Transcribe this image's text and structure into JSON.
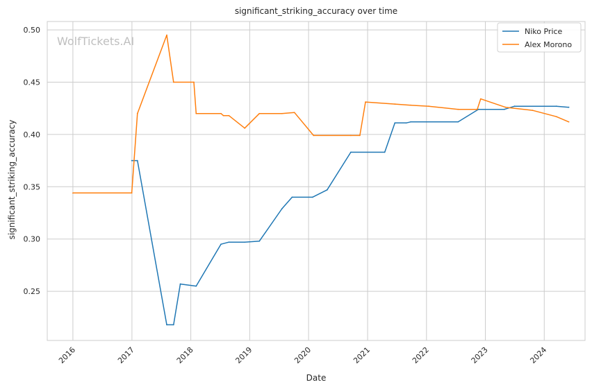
{
  "watermark": "WolfTickets.AI",
  "chart_data": {
    "type": "line",
    "title": "significant_striking_accuracy over time",
    "xlabel": "Date",
    "ylabel": "significant_striking_accuracy",
    "x_ticks": [
      "2016",
      "2017",
      "2018",
      "2019",
      "2020",
      "2021",
      "2022",
      "2023",
      "2024"
    ],
    "y_ticks": [
      "0.25",
      "0.30",
      "0.35",
      "0.40",
      "0.45",
      "0.50"
    ],
    "xlim": [
      "2015-07-26",
      "2024-09-10"
    ],
    "ylim": [
      0.203,
      0.508
    ],
    "grid": true,
    "legend_position": "top-right",
    "series": [
      {
        "name": "Niko Price",
        "color": "#1f77b4",
        "points": [
          [
            "2016-12-31",
            0.375
          ],
          [
            "2017-02-04",
            0.375
          ],
          [
            "2017-08-05",
            0.218
          ],
          [
            "2017-09-16",
            0.218
          ],
          [
            "2017-10-28",
            0.257
          ],
          [
            "2018-02-03",
            0.255
          ],
          [
            "2018-07-07",
            0.295
          ],
          [
            "2018-08-25",
            0.297
          ],
          [
            "2018-12-01",
            0.297
          ],
          [
            "2019-03-02",
            0.298
          ],
          [
            "2019-07-20",
            0.329
          ],
          [
            "2019-09-21",
            0.34
          ],
          [
            "2020-01-25",
            0.34
          ],
          [
            "2020-04-25",
            0.347
          ],
          [
            "2020-09-19",
            0.383
          ],
          [
            "2021-04-17",
            0.383
          ],
          [
            "2021-06-19",
            0.411
          ],
          [
            "2021-08-28",
            0.411
          ],
          [
            "2021-09-25",
            0.412
          ],
          [
            "2022-07-16",
            0.412
          ],
          [
            "2022-11-19",
            0.424
          ],
          [
            "2023-04-29",
            0.424
          ],
          [
            "2023-07-01",
            0.427
          ],
          [
            "2024-03-16",
            0.427
          ],
          [
            "2024-06-01",
            0.426
          ]
        ]
      },
      {
        "name": "Alex Morono",
        "color": "#ff7f0e",
        "points": [
          [
            "2016-01-01",
            0.344
          ],
          [
            "2016-12-31",
            0.344
          ],
          [
            "2017-02-04",
            0.42
          ],
          [
            "2017-08-05",
            0.495
          ],
          [
            "2017-09-16",
            0.45
          ],
          [
            "2018-01-20",
            0.45
          ],
          [
            "2018-02-03",
            0.42
          ],
          [
            "2018-07-07",
            0.42
          ],
          [
            "2018-07-22",
            0.418
          ],
          [
            "2018-08-25",
            0.418
          ],
          [
            "2018-12-01",
            0.406
          ],
          [
            "2019-03-02",
            0.42
          ],
          [
            "2019-07-20",
            0.42
          ],
          [
            "2019-10-05",
            0.421
          ],
          [
            "2020-02-01",
            0.399
          ],
          [
            "2020-09-19",
            0.399
          ],
          [
            "2020-11-14",
            0.399
          ],
          [
            "2020-12-19",
            0.431
          ],
          [
            "2021-06-19",
            0.429
          ],
          [
            "2021-09-25",
            0.428
          ],
          [
            "2022-01-15",
            0.427
          ],
          [
            "2022-07-16",
            0.424
          ],
          [
            "2022-11-12",
            0.424
          ],
          [
            "2022-12-03",
            0.434
          ],
          [
            "2023-05-06",
            0.426
          ],
          [
            "2023-10-21",
            0.423
          ],
          [
            "2024-03-16",
            0.417
          ],
          [
            "2024-06-01",
            0.412
          ]
        ]
      }
    ]
  }
}
